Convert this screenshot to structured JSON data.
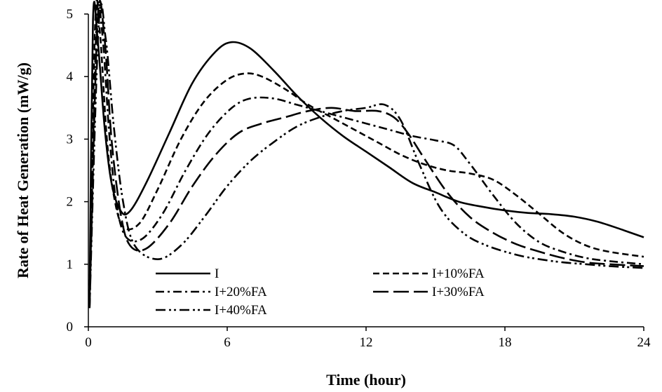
{
  "chart_data": {
    "type": "line",
    "xlabel": "Time (hour)",
    "ylabel": "Rate of Heat Generation (mW/g)",
    "xlim": [
      0,
      24
    ],
    "ylim": [
      0,
      5
    ],
    "xticks": [
      "0",
      "6",
      "12",
      "18",
      "24"
    ],
    "yticks": [
      "0",
      "1",
      "2",
      "3",
      "4",
      "5"
    ],
    "grid": false,
    "legend_placement": "bottom-center",
    "series": [
      {
        "name": "I",
        "dash": "solid",
        "x": [
          0.05,
          0.2,
          0.4,
          0.7,
          1.0,
          1.4,
          1.8,
          2.5,
          3.5,
          4.5,
          5.5,
          6.2,
          7.0,
          8.0,
          9.0,
          10.0,
          11.0,
          12.0,
          13.0,
          14.0,
          15.0,
          16.0,
          17.0,
          18.0,
          19.0,
          20.0,
          21.0,
          22.0,
          23.0,
          24.0
        ],
        "y": [
          0.4,
          4.9,
          4.6,
          3.2,
          2.3,
          1.85,
          1.85,
          2.3,
          3.1,
          3.9,
          4.4,
          4.55,
          4.45,
          4.1,
          3.7,
          3.35,
          3.05,
          2.8,
          2.55,
          2.3,
          2.15,
          2.0,
          1.92,
          1.86,
          1.82,
          1.8,
          1.76,
          1.68,
          1.56,
          1.43
        ]
      },
      {
        "name": "I+10%FA",
        "dash": "dash",
        "x": [
          0.05,
          0.3,
          0.5,
          0.8,
          1.1,
          1.5,
          2.2,
          3.0,
          4.0,
          5.0,
          6.0,
          6.8,
          7.5,
          8.5,
          9.5,
          10.5,
          11.5,
          12.5,
          13.5,
          14.5,
          15.5,
          16.5,
          17.5,
          18.5,
          19.5,
          20.5,
          21.5,
          22.5,
          24.0
        ],
        "y": [
          0.5,
          4.9,
          4.7,
          3.0,
          2.1,
          1.6,
          1.65,
          2.2,
          3.0,
          3.6,
          3.95,
          4.05,
          4.0,
          3.8,
          3.55,
          3.35,
          3.15,
          2.95,
          2.75,
          2.6,
          2.5,
          2.45,
          2.35,
          2.1,
          1.8,
          1.5,
          1.3,
          1.2,
          1.12
        ]
      },
      {
        "name": "I+20%FA",
        "dash": "dashdot",
        "x": [
          0.05,
          0.35,
          0.6,
          0.9,
          1.2,
          1.6,
          2.3,
          3.2,
          4.2,
          5.2,
          6.2,
          7.0,
          8.0,
          9.0,
          10.0,
          11.0,
          12.0,
          13.0,
          14.0,
          15.0,
          15.8,
          16.5,
          17.5,
          18.5,
          19.5,
          20.5,
          21.5,
          22.5,
          24.0
        ],
        "y": [
          0.3,
          4.85,
          4.7,
          3.1,
          2.0,
          1.45,
          1.4,
          1.8,
          2.5,
          3.1,
          3.5,
          3.65,
          3.65,
          3.55,
          3.45,
          3.35,
          3.25,
          3.15,
          3.05,
          2.98,
          2.9,
          2.6,
          2.1,
          1.65,
          1.35,
          1.2,
          1.1,
          1.05,
          1.0
        ]
      },
      {
        "name": "I+30%FA",
        "dash": "longdash",
        "x": [
          0.05,
          0.4,
          0.7,
          1.0,
          1.4,
          1.8,
          2.5,
          3.5,
          4.5,
          5.5,
          6.5,
          7.5,
          8.5,
          9.5,
          10.5,
          11.5,
          12.5,
          13.2,
          13.8,
          14.5,
          15.5,
          16.5,
          17.5,
          18.5,
          19.5,
          20.5,
          21.5,
          22.5,
          24.0
        ],
        "y": [
          0.3,
          4.9,
          4.6,
          3.0,
          1.8,
          1.3,
          1.25,
          1.65,
          2.25,
          2.75,
          3.1,
          3.25,
          3.35,
          3.45,
          3.5,
          3.45,
          3.45,
          3.35,
          3.1,
          2.7,
          2.15,
          1.75,
          1.5,
          1.32,
          1.2,
          1.1,
          1.03,
          1.0,
          0.97
        ]
      },
      {
        "name": "I+40%FA",
        "dash": "dashdotdot",
        "x": [
          0.05,
          0.45,
          0.75,
          1.1,
          1.5,
          2.0,
          3.0,
          4.0,
          5.0,
          6.0,
          7.0,
          8.0,
          9.0,
          10.0,
          11.0,
          12.0,
          12.8,
          13.5,
          14.3,
          15.2,
          16.2,
          17.2,
          18.5,
          19.5,
          20.5,
          21.5,
          22.5,
          24.0
        ],
        "y": [
          0.3,
          4.85,
          4.6,
          3.2,
          2.0,
          1.3,
          1.08,
          1.3,
          1.75,
          2.25,
          2.65,
          2.95,
          3.2,
          3.35,
          3.45,
          3.5,
          3.55,
          3.3,
          2.6,
          1.9,
          1.5,
          1.3,
          1.15,
          1.08,
          1.03,
          1.0,
          0.97,
          0.94
        ]
      }
    ]
  }
}
